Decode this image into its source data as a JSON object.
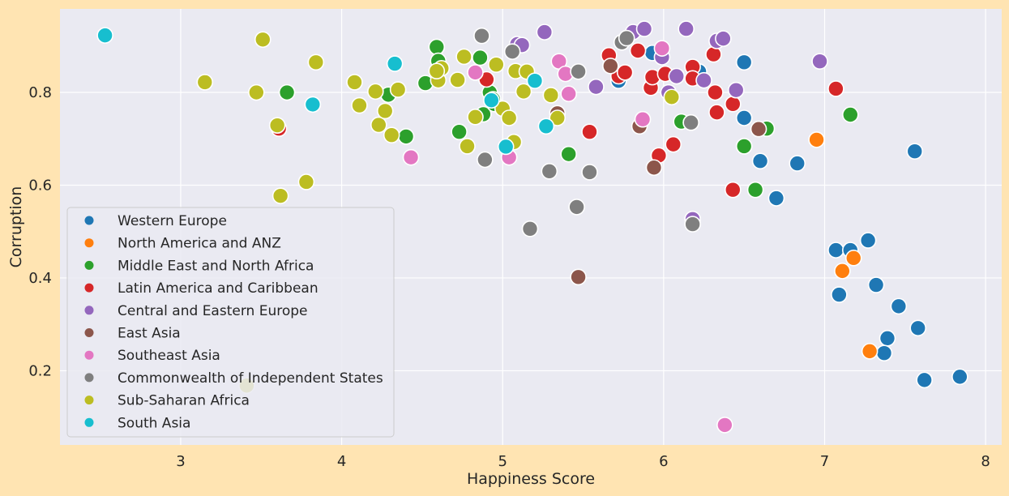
{
  "chart_data": {
    "type": "scatter",
    "title": "",
    "xlabel": "Happiness Score",
    "ylabel": "Corruption",
    "xlim": [
      2.25,
      8.1
    ],
    "ylim": [
      0.04,
      0.98
    ],
    "xticks": [
      "3",
      "4",
      "5",
      "6",
      "7",
      "8"
    ],
    "yticks": [
      "0.2",
      "0.4",
      "0.6",
      "0.8"
    ],
    "grid": true,
    "legend_placement": "lower-left",
    "series": [
      {
        "name": "Western Europe",
        "color": "#1f77b4",
        "points": [
          [
            5.93,
            0.885
          ],
          [
            6.5,
            0.865
          ],
          [
            5.72,
            0.825
          ],
          [
            6.22,
            0.845
          ],
          [
            6.5,
            0.745
          ],
          [
            6.6,
            0.652
          ],
          [
            6.7,
            0.572
          ],
          [
            6.83,
            0.647
          ],
          [
            7.56,
            0.673
          ],
          [
            7.07,
            0.46
          ],
          [
            7.16,
            0.46
          ],
          [
            7.27,
            0.481
          ],
          [
            7.09,
            0.364
          ],
          [
            7.32,
            0.385
          ],
          [
            7.46,
            0.339
          ],
          [
            7.39,
            0.27
          ],
          [
            7.37,
            0.238
          ],
          [
            7.58,
            0.292
          ],
          [
            7.62,
            0.18
          ],
          [
            7.84,
            0.187
          ]
        ]
      },
      {
        "name": "North America and ANZ",
        "color": "#ff7f0e",
        "points": [
          [
            6.95,
            0.698
          ],
          [
            7.18,
            0.443
          ],
          [
            7.11,
            0.415
          ],
          [
            7.28,
            0.242
          ]
        ]
      },
      {
        "name": "Middle East and North Africa",
        "color": "#2ca02c",
        "points": [
          [
            3.66,
            0.8
          ],
          [
            4.29,
            0.795
          ],
          [
            4.4,
            0.705
          ],
          [
            4.52,
            0.82
          ],
          [
            4.59,
            0.898
          ],
          [
            4.6,
            0.868
          ],
          [
            4.73,
            0.715
          ],
          [
            4.86,
            0.875
          ],
          [
            4.88,
            0.753
          ],
          [
            4.92,
            0.8
          ],
          [
            4.95,
            0.775
          ],
          [
            5.41,
            0.667
          ],
          [
            6.11,
            0.737
          ],
          [
            6.5,
            0.684
          ],
          [
            6.57,
            0.59
          ],
          [
            6.64,
            0.722
          ],
          [
            7.16,
            0.752
          ],
          [
            4.94,
            0.785
          ]
        ]
      },
      {
        "name": "Latin America and Caribbean",
        "color": "#d62728",
        "points": [
          [
            3.61,
            0.722
          ],
          [
            4.9,
            0.828
          ],
          [
            5.54,
            0.715
          ],
          [
            5.66,
            0.88
          ],
          [
            5.72,
            0.835
          ],
          [
            5.76,
            0.843
          ],
          [
            5.84,
            0.89
          ],
          [
            5.92,
            0.81
          ],
          [
            5.93,
            0.833
          ],
          [
            5.97,
            0.664
          ],
          [
            6.01,
            0.84
          ],
          [
            6.06,
            0.688
          ],
          [
            6.18,
            0.855
          ],
          [
            6.18,
            0.83
          ],
          [
            6.31,
            0.882
          ],
          [
            6.32,
            0.8
          ],
          [
            6.33,
            0.757
          ],
          [
            6.43,
            0.775
          ],
          [
            6.43,
            0.59
          ],
          [
            7.07,
            0.808
          ]
        ]
      },
      {
        "name": "Central and Eastern Europe",
        "color": "#9467bd",
        "points": [
          [
            5.09,
            0.904
          ],
          [
            5.12,
            0.902
          ],
          [
            5.26,
            0.93
          ],
          [
            5.58,
            0.812
          ],
          [
            5.81,
            0.93
          ],
          [
            5.88,
            0.937
          ],
          [
            5.99,
            0.876
          ],
          [
            6.03,
            0.8
          ],
          [
            6.08,
            0.835
          ],
          [
            6.14,
            0.937
          ],
          [
            6.17,
            0.735
          ],
          [
            6.25,
            0.826
          ],
          [
            6.33,
            0.911
          ],
          [
            6.37,
            0.916
          ],
          [
            6.45,
            0.805
          ],
          [
            6.18,
            0.527
          ],
          [
            6.97,
            0.867
          ]
        ]
      },
      {
        "name": "East Asia",
        "color": "#8c564b",
        "points": [
          [
            5.34,
            0.755
          ],
          [
            5.47,
            0.402
          ],
          [
            5.67,
            0.857
          ],
          [
            5.85,
            0.727
          ],
          [
            5.94,
            0.638
          ],
          [
            6.59,
            0.721
          ]
        ]
      },
      {
        "name": "Southeast Asia",
        "color": "#e377c2",
        "points": [
          [
            4.43,
            0.66
          ],
          [
            4.83,
            0.843
          ],
          [
            5.04,
            0.66
          ],
          [
            5.35,
            0.867
          ],
          [
            5.39,
            0.84
          ],
          [
            5.41,
            0.797
          ],
          [
            5.87,
            0.742
          ],
          [
            5.99,
            0.895
          ],
          [
            6.38,
            0.083
          ]
        ]
      },
      {
        "name": "Commonwealth of Independent States",
        "color": "#7f7f7f",
        "points": [
          [
            4.87,
            0.922
          ],
          [
            4.89,
            0.655
          ],
          [
            5.06,
            0.888
          ],
          [
            5.17,
            0.506
          ],
          [
            5.29,
            0.63
          ],
          [
            5.46,
            0.553
          ],
          [
            5.47,
            0.845
          ],
          [
            5.54,
            0.628
          ],
          [
            5.74,
            0.908
          ],
          [
            5.77,
            0.917
          ],
          [
            6.17,
            0.735
          ],
          [
            6.18,
            0.516
          ]
        ]
      },
      {
        "name": "Sub-Saharan Africa",
        "color": "#bcbd22",
        "points": [
          [
            3.15,
            0.822
          ],
          [
            3.41,
            0.168
          ],
          [
            3.47,
            0.8
          ],
          [
            3.51,
            0.914
          ],
          [
            3.6,
            0.729
          ],
          [
            3.62,
            0.577
          ],
          [
            3.78,
            0.607
          ],
          [
            3.84,
            0.865
          ],
          [
            4.08,
            0.822
          ],
          [
            4.11,
            0.772
          ],
          [
            4.21,
            0.802
          ],
          [
            4.23,
            0.73
          ],
          [
            4.27,
            0.76
          ],
          [
            4.31,
            0.708
          ],
          [
            4.35,
            0.806
          ],
          [
            4.6,
            0.826
          ],
          [
            4.62,
            0.852
          ],
          [
            4.59,
            0.846
          ],
          [
            4.72,
            0.827
          ],
          [
            4.76,
            0.877
          ],
          [
            4.78,
            0.684
          ],
          [
            4.83,
            0.747
          ],
          [
            4.96,
            0.86
          ],
          [
            5.0,
            0.765
          ],
          [
            5.04,
            0.745
          ],
          [
            5.07,
            0.693
          ],
          [
            5.08,
            0.846
          ],
          [
            5.13,
            0.802
          ],
          [
            5.15,
            0.845
          ],
          [
            5.3,
            0.794
          ],
          [
            5.34,
            0.745
          ],
          [
            6.05,
            0.79
          ]
        ]
      },
      {
        "name": "South Asia",
        "color": "#17becf",
        "points": [
          [
            2.53,
            0.923
          ],
          [
            3.82,
            0.774
          ],
          [
            4.33,
            0.862
          ],
          [
            4.93,
            0.783
          ],
          [
            5.02,
            0.683
          ],
          [
            5.2,
            0.825
          ],
          [
            5.27,
            0.727
          ]
        ]
      }
    ]
  }
}
